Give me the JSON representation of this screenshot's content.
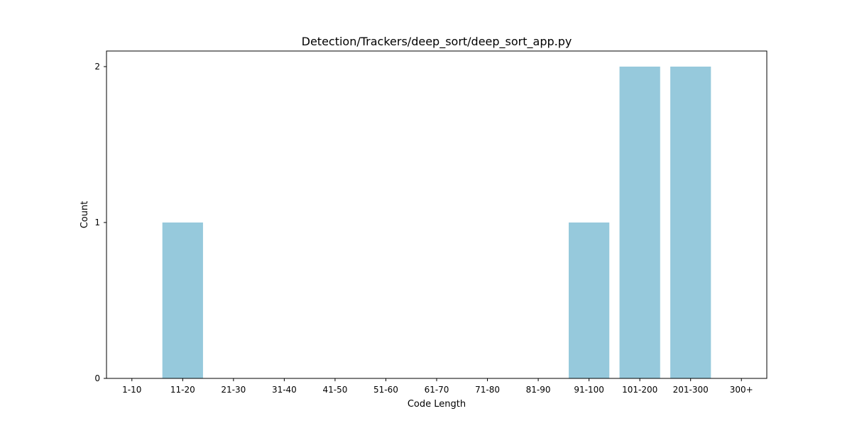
{
  "chart_data": {
    "type": "bar",
    "title": "Detection/Trackers/deep_sort/deep_sort_app.py",
    "xlabel": "Code Length",
    "ylabel": "Count",
    "categories": [
      "1-10",
      "11-20",
      "21-30",
      "31-40",
      "41-50",
      "51-60",
      "61-70",
      "71-80",
      "81-90",
      "91-100",
      "101-200",
      "201-300",
      "300+"
    ],
    "values": [
      0,
      1,
      0,
      0,
      0,
      0,
      0,
      0,
      0,
      1,
      2,
      2,
      0
    ],
    "ylim": [
      0,
      2.1
    ],
    "yticks": [
      0,
      1,
      2
    ],
    "bar_color": "#96c9dc",
    "grid": false,
    "legend": "none"
  }
}
